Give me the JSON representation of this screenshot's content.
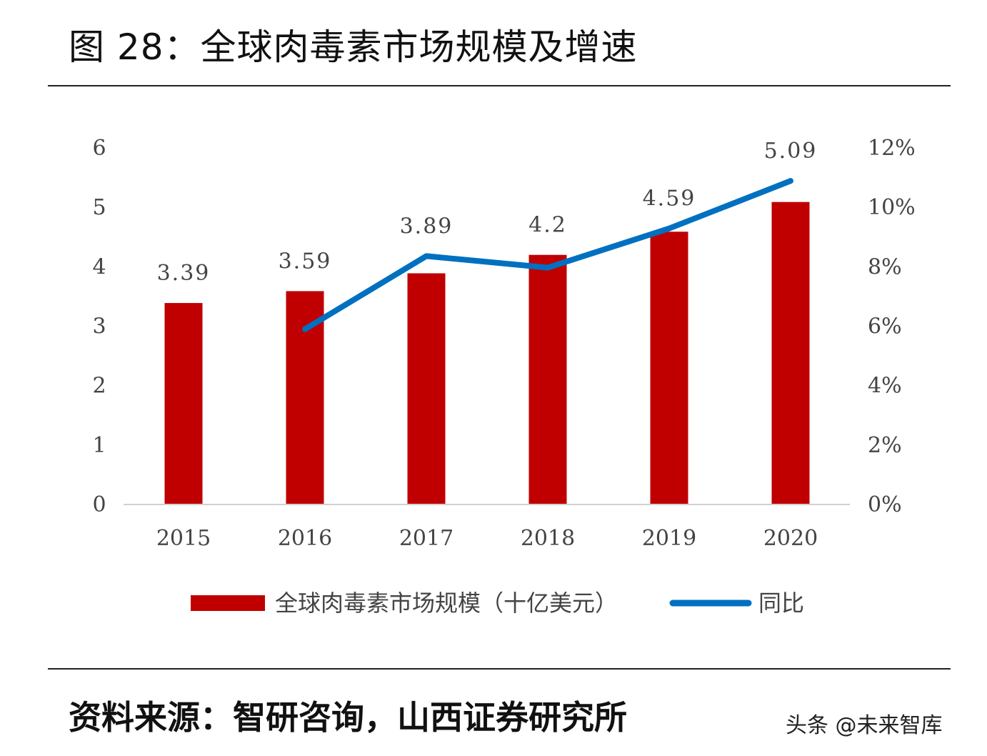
{
  "title": "图 28：全球肉毒素市场规模及增速",
  "source": "资料来源：智研咨询，山西证券研究所",
  "watermark": "头条 @未来智库",
  "chart_data": {
    "type": "bar+line",
    "categories": [
      "2015",
      "2016",
      "2017",
      "2018",
      "2019",
      "2020"
    ],
    "series": [
      {
        "name": "全球肉毒素市场规模（十亿美元）",
        "type": "bar",
        "axis": "left",
        "color": "#C00000",
        "values": [
          3.39,
          3.59,
          3.89,
          4.2,
          4.59,
          5.09
        ],
        "labels": [
          "3.39",
          "3.59",
          "3.89",
          "4.2",
          "4.59",
          "5.09"
        ]
      },
      {
        "name": "同比",
        "type": "line",
        "axis": "right",
        "color": "#0070C0",
        "values": [
          null,
          5.9,
          8.36,
          7.97,
          9.29,
          10.89
        ]
      }
    ],
    "left_axis": {
      "ylim": [
        0,
        6
      ],
      "ticks": [
        "0",
        "1",
        "2",
        "3",
        "4",
        "5",
        "6"
      ]
    },
    "right_axis": {
      "ylim": [
        0,
        12
      ],
      "unit": "%",
      "ticks": [
        "0%",
        "2%",
        "4%",
        "6%",
        "8%",
        "10%",
        "12%"
      ]
    },
    "grid": false,
    "legend": "bottom"
  }
}
